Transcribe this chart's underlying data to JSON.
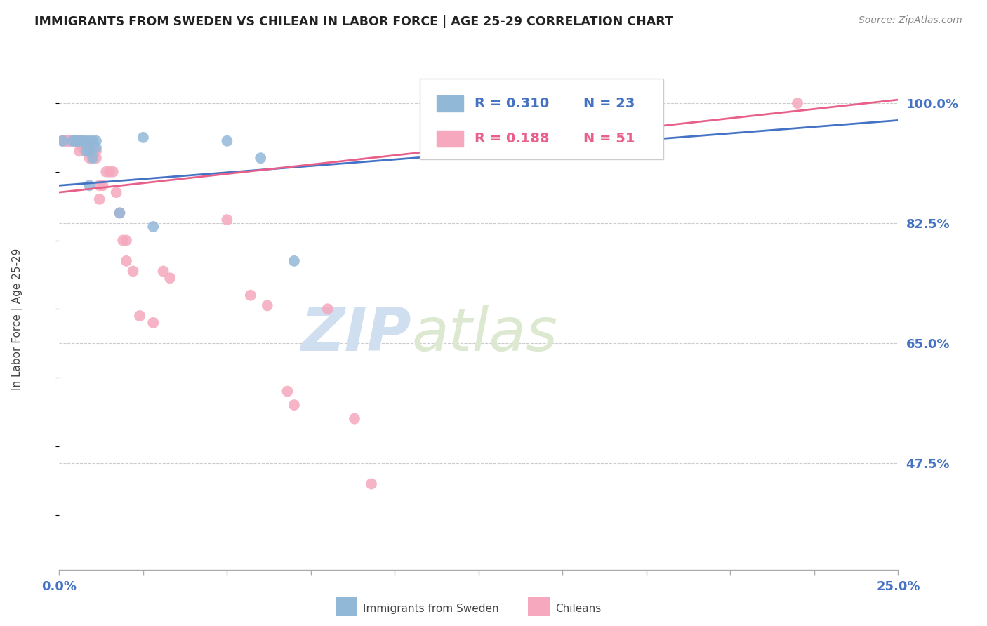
{
  "title": "IMMIGRANTS FROM SWEDEN VS CHILEAN IN LABOR FORCE | AGE 25-29 CORRELATION CHART",
  "source": "Source: ZipAtlas.com",
  "ylabel": "In Labor Force | Age 25-29",
  "ytick_labels": [
    "100.0%",
    "82.5%",
    "65.0%",
    "47.5%"
  ],
  "ytick_values": [
    1.0,
    0.825,
    0.65,
    0.475
  ],
  "xlim": [
    0.0,
    0.25
  ],
  "ylim": [
    0.32,
    1.05
  ],
  "sweden_color": "#92b8d8",
  "chilean_color": "#f5a8be",
  "sweden_line_color": "#4472c4",
  "chilean_line_color": "#e8608a",
  "legend_r_sweden": "R = 0.310",
  "legend_n_sweden": "N = 23",
  "legend_r_chilean": "R = 0.188",
  "legend_n_chilean": "N = 51",
  "sweden_x": [
    0.001,
    0.004,
    0.005,
    0.005,
    0.006,
    0.006,
    0.007,
    0.007,
    0.008,
    0.008,
    0.009,
    0.009,
    0.009,
    0.01,
    0.01,
    0.011,
    0.011,
    0.018,
    0.025,
    0.028,
    0.05,
    0.06,
    0.07
  ],
  "sweden_y": [
    0.945,
    0.945,
    0.945,
    0.945,
    0.945,
    0.945,
    0.945,
    0.945,
    0.93,
    0.945,
    0.93,
    0.88,
    0.945,
    0.92,
    0.945,
    0.945,
    0.935,
    0.84,
    0.95,
    0.82,
    0.945,
    0.92,
    0.77
  ],
  "chilean_x": [
    0.001,
    0.001,
    0.002,
    0.002,
    0.002,
    0.003,
    0.003,
    0.003,
    0.004,
    0.004,
    0.005,
    0.005,
    0.005,
    0.006,
    0.006,
    0.006,
    0.007,
    0.007,
    0.008,
    0.008,
    0.009,
    0.009,
    0.01,
    0.01,
    0.011,
    0.011,
    0.012,
    0.012,
    0.013,
    0.014,
    0.015,
    0.016,
    0.017,
    0.018,
    0.019,
    0.02,
    0.02,
    0.022,
    0.024,
    0.028,
    0.031,
    0.033,
    0.05,
    0.057,
    0.062,
    0.068,
    0.07,
    0.08,
    0.088,
    0.093,
    0.22
  ],
  "chilean_y": [
    0.945,
    0.945,
    0.945,
    0.945,
    0.945,
    0.945,
    0.945,
    0.945,
    0.945,
    0.945,
    0.945,
    0.945,
    0.945,
    0.945,
    0.93,
    0.945,
    0.945,
    0.935,
    0.935,
    0.93,
    0.93,
    0.92,
    0.935,
    0.93,
    0.92,
    0.93,
    0.86,
    0.88,
    0.88,
    0.9,
    0.9,
    0.9,
    0.87,
    0.84,
    0.8,
    0.77,
    0.8,
    0.755,
    0.69,
    0.68,
    0.755,
    0.745,
    0.83,
    0.72,
    0.705,
    0.58,
    0.56,
    0.7,
    0.54,
    0.445,
    1.0
  ],
  "sweden_trendline_x": [
    0.0,
    0.25
  ],
  "sweden_trendline_y": [
    0.88,
    0.975
  ],
  "chilean_trendline_x": [
    0.0,
    0.25
  ],
  "chilean_trendline_y": [
    0.87,
    1.005
  ],
  "watermark_zip": "ZIP",
  "watermark_atlas": "atlas",
  "background_color": "#ffffff",
  "grid_color": "#cccccc",
  "xtick_positions": [
    0.0,
    0.025,
    0.05,
    0.075,
    0.1,
    0.125,
    0.15,
    0.175,
    0.2,
    0.225,
    0.25
  ]
}
